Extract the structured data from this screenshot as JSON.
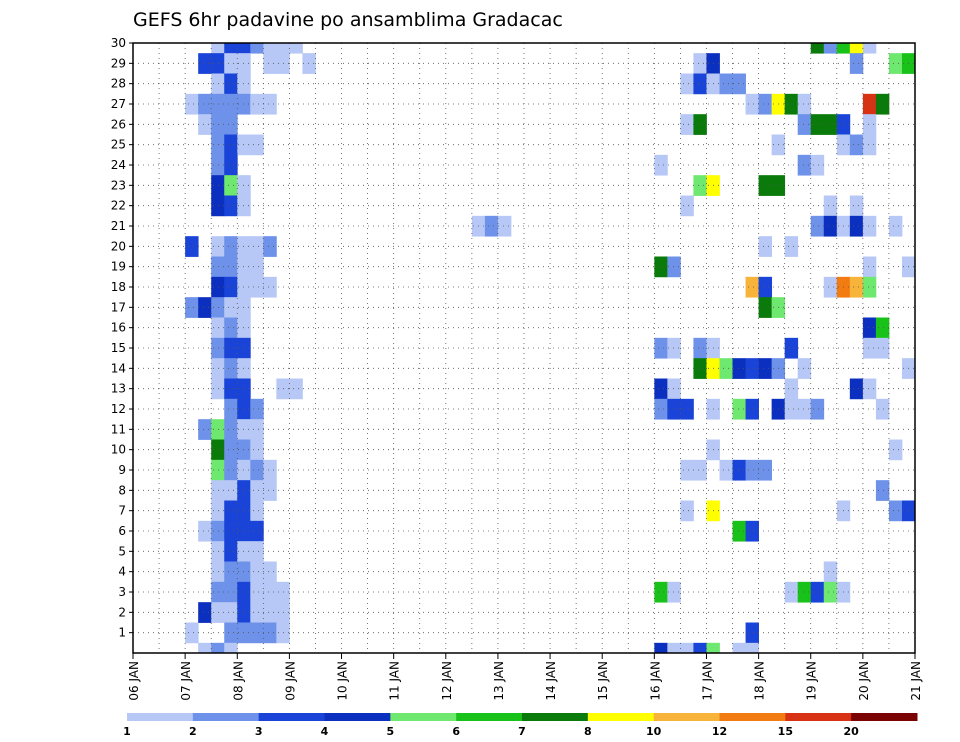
{
  "chart_data": {
    "type": "heatmap",
    "title": "GEFS 6hr padavine po ansamblima Gradacac",
    "x_tick_labels": [
      "06 JAN",
      "07 JAN",
      "08 JAN",
      "09 JAN",
      "10 JAN",
      "11 JAN",
      "12 JAN",
      "13 JAN",
      "14 JAN",
      "15 JAN",
      "16 JAN",
      "17 JAN",
      "18 JAN",
      "19 JAN",
      "20 JAN",
      "21 JAN"
    ],
    "y_tick_labels": [
      "1",
      "2",
      "3",
      "4",
      "5",
      "6",
      "7",
      "8",
      "9",
      "10",
      "11",
      "12",
      "13",
      "14",
      "15",
      "16",
      "17",
      "18",
      "19",
      "20",
      "21",
      "22",
      "23",
      "24",
      "25",
      "26",
      "27",
      "28",
      "29",
      "30"
    ],
    "x_range_days": [
      6,
      21
    ],
    "y_range_members": [
      1,
      30
    ],
    "steps_per_day": 4,
    "grid": "dotted",
    "colorbar": {
      "position": "bottom",
      "tick_labels": [
        "1",
        "2",
        "3",
        "4",
        "5",
        "6",
        "7",
        "8",
        "10",
        "12",
        "15",
        "20"
      ],
      "colors": [
        "#b7c8f6",
        "#6e92ea",
        "#1a44d8",
        "#0b2fbf",
        "#6fe86f",
        "#19c219",
        "#0a7a0a",
        "#ffff00",
        "#f8b43a",
        "#f27b12",
        "#d83214",
        "#7a0404"
      ]
    },
    "level_values": [
      1,
      2,
      3,
      5,
      6,
      7,
      8,
      10,
      12,
      15,
      20
    ],
    "cells": [
      [
        30,
        "07:12",
        1
      ],
      [
        30,
        "07:18",
        3
      ],
      [
        30,
        "08:00",
        3
      ],
      [
        30,
        "08:06",
        2
      ],
      [
        30,
        "08:12",
        1
      ],
      [
        30,
        "08:18",
        1
      ],
      [
        30,
        "09:00",
        1
      ],
      [
        30,
        "19:00",
        8
      ],
      [
        30,
        "19:06",
        2
      ],
      [
        30,
        "19:12",
        7
      ],
      [
        30,
        "19:18",
        10
      ],
      [
        30,
        "20:00",
        1
      ],
      [
        29,
        "07:06",
        3
      ],
      [
        29,
        "07:12",
        3
      ],
      [
        29,
        "07:18",
        1
      ],
      [
        29,
        "08:00",
        1
      ],
      [
        29,
        "08:12",
        1
      ],
      [
        29,
        "08:18",
        1
      ],
      [
        29,
        "09:06",
        1
      ],
      [
        29,
        "16:18",
        1
      ],
      [
        29,
        "17:00",
        5
      ],
      [
        29,
        "19:18",
        2
      ],
      [
        29,
        "20:12",
        6
      ],
      [
        29,
        "20:18",
        7
      ],
      [
        29,
        "21:00",
        3
      ],
      [
        28,
        "07:12",
        1
      ],
      [
        28,
        "07:18",
        3
      ],
      [
        28,
        "08:00",
        1
      ],
      [
        28,
        "16:12",
        1
      ],
      [
        28,
        "16:18",
        3
      ],
      [
        28,
        "17:00",
        1
      ],
      [
        28,
        "17:06",
        2
      ],
      [
        28,
        "17:12",
        2
      ],
      [
        27,
        "07:00",
        1
      ],
      [
        27,
        "07:06",
        2
      ],
      [
        27,
        "07:12",
        2
      ],
      [
        27,
        "07:18",
        2
      ],
      [
        27,
        "08:00",
        2
      ],
      [
        27,
        "08:06",
        1
      ],
      [
        27,
        "08:12",
        1
      ],
      [
        27,
        "17:18",
        1
      ],
      [
        27,
        "18:00",
        2
      ],
      [
        27,
        "18:06",
        10
      ],
      [
        27,
        "18:12",
        8
      ],
      [
        27,
        "18:18",
        1
      ],
      [
        27,
        "20:00",
        20
      ],
      [
        27,
        "20:06",
        8
      ],
      [
        26,
        "07:06",
        1
      ],
      [
        26,
        "07:12",
        2
      ],
      [
        26,
        "07:18",
        2
      ],
      [
        26,
        "16:12",
        1
      ],
      [
        26,
        "16:18",
        8
      ],
      [
        26,
        "18:18",
        2
      ],
      [
        26,
        "19:00",
        8
      ],
      [
        26,
        "19:06",
        8
      ],
      [
        26,
        "19:12",
        3
      ],
      [
        26,
        "20:00",
        1
      ],
      [
        25,
        "07:12",
        2
      ],
      [
        25,
        "07:18",
        3
      ],
      [
        25,
        "08:00",
        1
      ],
      [
        25,
        "08:06",
        1
      ],
      [
        25,
        "18:06",
        1
      ],
      [
        25,
        "19:12",
        1
      ],
      [
        25,
        "19:18",
        2
      ],
      [
        25,
        "20:00",
        1
      ],
      [
        24,
        "07:12",
        2
      ],
      [
        24,
        "07:18",
        3
      ],
      [
        24,
        "16:00",
        1
      ],
      [
        24,
        "18:18",
        2
      ],
      [
        24,
        "19:00",
        1
      ],
      [
        23,
        "07:12",
        5
      ],
      [
        23,
        "07:18",
        6
      ],
      [
        23,
        "08:00",
        1
      ],
      [
        23,
        "16:18",
        6
      ],
      [
        23,
        "17:00",
        10
      ],
      [
        23,
        "18:00",
        8
      ],
      [
        23,
        "18:06",
        8
      ],
      [
        22,
        "07:12",
        5
      ],
      [
        22,
        "07:18",
        3
      ],
      [
        22,
        "08:00",
        1
      ],
      [
        22,
        "16:12",
        1
      ],
      [
        22,
        "19:06",
        1
      ],
      [
        22,
        "19:18",
        1
      ],
      [
        21,
        "12:12",
        1
      ],
      [
        21,
        "12:18",
        2
      ],
      [
        21,
        "13:00",
        1
      ],
      [
        21,
        "19:00",
        2
      ],
      [
        21,
        "19:06",
        5
      ],
      [
        21,
        "19:12",
        1
      ],
      [
        21,
        "19:18",
        5
      ],
      [
        21,
        "20:00",
        1
      ],
      [
        21,
        "20:12",
        1
      ],
      [
        20,
        "07:00",
        3
      ],
      [
        20,
        "07:12",
        1
      ],
      [
        20,
        "07:18",
        2
      ],
      [
        20,
        "08:00",
        1
      ],
      [
        20,
        "08:06",
        1
      ],
      [
        20,
        "08:12",
        2
      ],
      [
        20,
        "18:00",
        1
      ],
      [
        20,
        "18:12",
        1
      ],
      [
        19,
        "07:12",
        2
      ],
      [
        19,
        "07:18",
        2
      ],
      [
        19,
        "08:00",
        1
      ],
      [
        19,
        "08:06",
        1
      ],
      [
        19,
        "16:00",
        8
      ],
      [
        19,
        "16:06",
        2
      ],
      [
        19,
        "20:00",
        1
      ],
      [
        19,
        "20:18",
        1
      ],
      [
        18,
        "07:12",
        5
      ],
      [
        18,
        "07:18",
        3
      ],
      [
        18,
        "08:00",
        1
      ],
      [
        18,
        "08:06",
        1
      ],
      [
        18,
        "08:12",
        1
      ],
      [
        18,
        "17:18",
        12
      ],
      [
        18,
        "18:00",
        3
      ],
      [
        18,
        "19:06",
        1
      ],
      [
        18,
        "19:12",
        15
      ],
      [
        18,
        "19:18",
        12
      ],
      [
        18,
        "20:00",
        6
      ],
      [
        17,
        "07:00",
        2
      ],
      [
        17,
        "07:06",
        5
      ],
      [
        17,
        "07:12",
        2
      ],
      [
        17,
        "07:18",
        1
      ],
      [
        17,
        "08:00",
        1
      ],
      [
        17,
        "18:00",
        8
      ],
      [
        17,
        "18:06",
        6
      ],
      [
        16,
        "07:12",
        1
      ],
      [
        16,
        "07:18",
        2
      ],
      [
        16,
        "08:00",
        1
      ],
      [
        16,
        "20:00",
        5
      ],
      [
        16,
        "20:06",
        7
      ],
      [
        15,
        "07:12",
        2
      ],
      [
        15,
        "07:18",
        3
      ],
      [
        15,
        "08:00",
        3
      ],
      [
        15,
        "16:00",
        2
      ],
      [
        15,
        "16:06",
        1
      ],
      [
        15,
        "16:18",
        2
      ],
      [
        15,
        "17:00",
        1
      ],
      [
        15,
        "18:12",
        3
      ],
      [
        15,
        "20:00",
        1
      ],
      [
        15,
        "20:06",
        1
      ],
      [
        14,
        "07:12",
        1
      ],
      [
        14,
        "07:18",
        2
      ],
      [
        14,
        "08:00",
        1
      ],
      [
        14,
        "16:18",
        8
      ],
      [
        14,
        "17:00",
        10
      ],
      [
        14,
        "17:06",
        6
      ],
      [
        14,
        "17:12",
        5
      ],
      [
        14,
        "17:18",
        3
      ],
      [
        14,
        "18:00",
        5
      ],
      [
        14,
        "18:06",
        2
      ],
      [
        14,
        "18:18",
        1
      ],
      [
        14,
        "20:18",
        1
      ],
      [
        13,
        "07:12",
        1
      ],
      [
        13,
        "07:18",
        3
      ],
      [
        13,
        "08:00",
        3
      ],
      [
        13,
        "08:18",
        1
      ],
      [
        13,
        "09:00",
        1
      ],
      [
        13,
        "16:00",
        5
      ],
      [
        13,
        "16:06",
        1
      ],
      [
        13,
        "18:12",
        1
      ],
      [
        13,
        "19:18",
        5
      ],
      [
        13,
        "20:00",
        1
      ],
      [
        12,
        "07:18",
        2
      ],
      [
        12,
        "08:00",
        3
      ],
      [
        12,
        "08:06",
        2
      ],
      [
        12,
        "16:00",
        2
      ],
      [
        12,
        "16:06",
        3
      ],
      [
        12,
        "16:12",
        3
      ],
      [
        12,
        "17:00",
        1
      ],
      [
        12,
        "17:12",
        6
      ],
      [
        12,
        "17:18",
        3
      ],
      [
        12,
        "18:06",
        5
      ],
      [
        12,
        "18:12",
        1
      ],
      [
        12,
        "18:18",
        1
      ],
      [
        12,
        "19:00",
        2
      ],
      [
        12,
        "20:06",
        1
      ],
      [
        11,
        "07:06",
        2
      ],
      [
        11,
        "07:12",
        6
      ],
      [
        11,
        "07:18",
        2
      ],
      [
        11,
        "08:00",
        1
      ],
      [
        11,
        "08:06",
        1
      ],
      [
        10,
        "07:12",
        8
      ],
      [
        10,
        "07:18",
        2
      ],
      [
        10,
        "08:00",
        2
      ],
      [
        10,
        "08:06",
        1
      ],
      [
        10,
        "17:00",
        1
      ],
      [
        10,
        "20:12",
        1
      ],
      [
        9,
        "07:12",
        6
      ],
      [
        9,
        "07:18",
        2
      ],
      [
        9,
        "08:00",
        1
      ],
      [
        9,
        "08:06",
        2
      ],
      [
        9,
        "08:12",
        1
      ],
      [
        9,
        "16:12",
        1
      ],
      [
        9,
        "16:18",
        1
      ],
      [
        9,
        "17:06",
        1
      ],
      [
        9,
        "17:12",
        3
      ],
      [
        9,
        "17:18",
        2
      ],
      [
        9,
        "18:00",
        2
      ],
      [
        8,
        "07:12",
        1
      ],
      [
        8,
        "07:18",
        1
      ],
      [
        8,
        "08:00",
        3
      ],
      [
        8,
        "08:06",
        1
      ],
      [
        8,
        "08:12",
        1
      ],
      [
        8,
        "20:06",
        2
      ],
      [
        7,
        "07:12",
        1
      ],
      [
        7,
        "07:18",
        3
      ],
      [
        7,
        "08:00",
        3
      ],
      [
        7,
        "08:06",
        1
      ],
      [
        7,
        "16:12",
        1
      ],
      [
        7,
        "17:00",
        10
      ],
      [
        7,
        "19:12",
        1
      ],
      [
        7,
        "20:12",
        2
      ],
      [
        7,
        "20:18",
        3
      ],
      [
        6,
        "07:06",
        1
      ],
      [
        6,
        "07:12",
        2
      ],
      [
        6,
        "07:18",
        3
      ],
      [
        6,
        "08:00",
        3
      ],
      [
        6,
        "08:06",
        3
      ],
      [
        6,
        "17:12",
        7
      ],
      [
        6,
        "17:18",
        3
      ],
      [
        5,
        "07:12",
        1
      ],
      [
        5,
        "07:18",
        3
      ],
      [
        5,
        "08:00",
        1
      ],
      [
        5,
        "08:06",
        1
      ],
      [
        4,
        "07:12",
        1
      ],
      [
        4,
        "07:18",
        2
      ],
      [
        4,
        "08:00",
        2
      ],
      [
        4,
        "08:06",
        1
      ],
      [
        4,
        "08:12",
        1
      ],
      [
        4,
        "19:06",
        1
      ],
      [
        3,
        "07:12",
        2
      ],
      [
        3,
        "07:18",
        2
      ],
      [
        3,
        "08:00",
        3
      ],
      [
        3,
        "08:06",
        1
      ],
      [
        3,
        "08:12",
        1
      ],
      [
        3,
        "08:18",
        1
      ],
      [
        3,
        "16:00",
        7
      ],
      [
        3,
        "16:06",
        1
      ],
      [
        3,
        "18:12",
        1
      ],
      [
        3,
        "18:18",
        7
      ],
      [
        3,
        "19:00",
        3
      ],
      [
        3,
        "19:06",
        6
      ],
      [
        3,
        "19:12",
        1
      ],
      [
        2,
        "07:06",
        5
      ],
      [
        2,
        "07:12",
        1
      ],
      [
        2,
        "07:18",
        1
      ],
      [
        2,
        "08:00",
        3
      ],
      [
        2,
        "08:06",
        1
      ],
      [
        2,
        "08:12",
        1
      ],
      [
        2,
        "08:18",
        1
      ],
      [
        1,
        "07:00",
        1
      ],
      [
        1,
        "07:18",
        2
      ],
      [
        1,
        "08:00",
        2
      ],
      [
        1,
        "08:06",
        2
      ],
      [
        1,
        "08:12",
        2
      ],
      [
        1,
        "08:18",
        1
      ],
      [
        1,
        "17:18",
        3
      ],
      [
        0,
        "07:06",
        1
      ],
      [
        0,
        "07:12",
        2
      ],
      [
        0,
        "07:18",
        1
      ],
      [
        0,
        "16:00",
        5
      ],
      [
        0,
        "16:06",
        1
      ],
      [
        0,
        "16:12",
        1
      ],
      [
        0,
        "16:18",
        3
      ],
      [
        0,
        "17:00",
        6
      ],
      [
        0,
        "17:12",
        1
      ],
      [
        0,
        "17:18",
        1
      ]
    ]
  }
}
